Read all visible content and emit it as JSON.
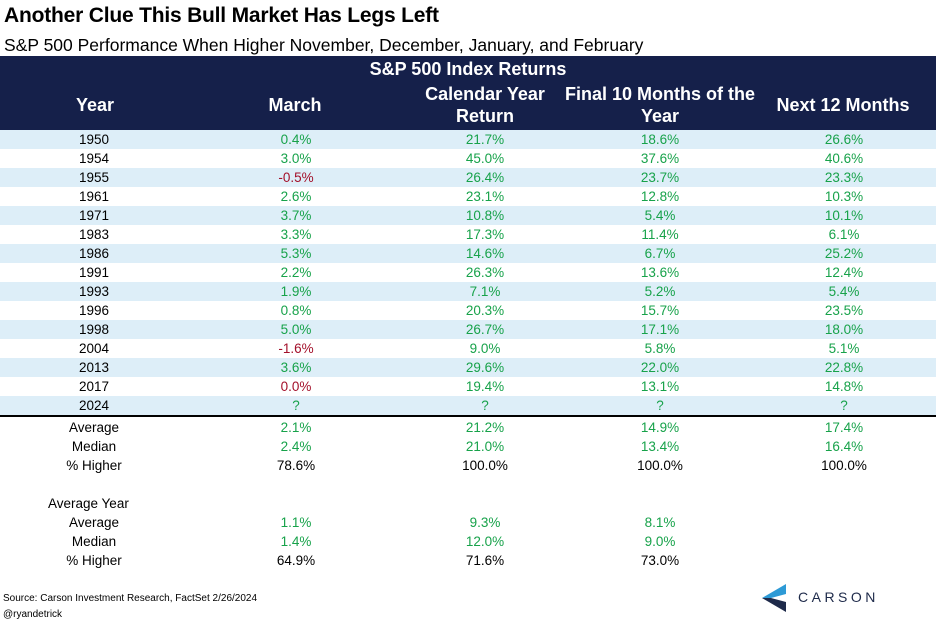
{
  "title": "Another Clue This Bull Market Has Legs Left",
  "subtitle": "S&P 500 Performance When Higher November, December, January, and February",
  "header": {
    "group_label": "S&P 500 Index Returns",
    "columns": [
      "Year",
      "March",
      "Calendar Year Return",
      "Final 10 Months of the Year",
      "Next 12 Months"
    ]
  },
  "rows": [
    {
      "year": "1950",
      "march": "0.4%",
      "calendar": "21.7%",
      "final10": "18.6%",
      "next12": "26.6%"
    },
    {
      "year": "1954",
      "march": "3.0%",
      "calendar": "45.0%",
      "final10": "37.6%",
      "next12": "40.6%"
    },
    {
      "year": "1955",
      "march": "-0.5%",
      "calendar": "26.4%",
      "final10": "23.7%",
      "next12": "23.3%"
    },
    {
      "year": "1961",
      "march": "2.6%",
      "calendar": "23.1%",
      "final10": "12.8%",
      "next12": "10.3%"
    },
    {
      "year": "1971",
      "march": "3.7%",
      "calendar": "10.8%",
      "final10": "5.4%",
      "next12": "10.1%"
    },
    {
      "year": "1983",
      "march": "3.3%",
      "calendar": "17.3%",
      "final10": "11.4%",
      "next12": "6.1%"
    },
    {
      "year": "1986",
      "march": "5.3%",
      "calendar": "14.6%",
      "final10": "6.7%",
      "next12": "25.2%"
    },
    {
      "year": "1991",
      "march": "2.2%",
      "calendar": "26.3%",
      "final10": "13.6%",
      "next12": "12.4%"
    },
    {
      "year": "1993",
      "march": "1.9%",
      "calendar": "7.1%",
      "final10": "5.2%",
      "next12": "5.4%"
    },
    {
      "year": "1996",
      "march": "0.8%",
      "calendar": "20.3%",
      "final10": "15.7%",
      "next12": "23.5%"
    },
    {
      "year": "1998",
      "march": "5.0%",
      "calendar": "26.7%",
      "final10": "17.1%",
      "next12": "18.0%"
    },
    {
      "year": "2004",
      "march": "-1.6%",
      "calendar": "9.0%",
      "final10": "5.8%",
      "next12": "5.1%"
    },
    {
      "year": "2013",
      "march": "3.6%",
      "calendar": "29.6%",
      "final10": "22.0%",
      "next12": "22.8%"
    },
    {
      "year": "2017",
      "march": "0.0%",
      "calendar": "19.4%",
      "final10": "13.1%",
      "next12": "14.8%"
    },
    {
      "year": "2024",
      "march": "?",
      "calendar": "?",
      "final10": "?",
      "next12": "?"
    }
  ],
  "stats": [
    {
      "label": "Average",
      "march": "2.1%",
      "calendar": "21.2%",
      "final10": "14.9%",
      "next12": "17.4%"
    },
    {
      "label": "Median",
      "march": "2.4%",
      "calendar": "21.0%",
      "final10": "13.4%",
      "next12": "16.4%"
    },
    {
      "label": "% Higher",
      "march": "78.6%",
      "calendar": "100.0%",
      "final10": "100.0%",
      "next12": "100.0%"
    }
  ],
  "average_year": {
    "label": "Average Year",
    "rows": [
      {
        "label": "Average",
        "march": "1.1%",
        "calendar": "9.3%",
        "final10": "8.1%"
      },
      {
        "label": "Median",
        "march": "1.4%",
        "calendar": "12.0%",
        "final10": "9.0%"
      },
      {
        "label": "% Higher",
        "march": "64.9%",
        "calendar": "71.6%",
        "final10": "73.0%"
      }
    ]
  },
  "footer": {
    "source": "Source: Carson Investment Research, FactSet 2/26/2024",
    "handle": "@ryandetrick",
    "logo_text": "CARSON"
  },
  "colors": {
    "header_bg": "#15204a",
    "row_shade": "#ddeef8",
    "positive": "#17a24a",
    "negative": "#a3102a",
    "logo_light": "#2d9ad6",
    "logo_dark": "#1e2a4a"
  }
}
